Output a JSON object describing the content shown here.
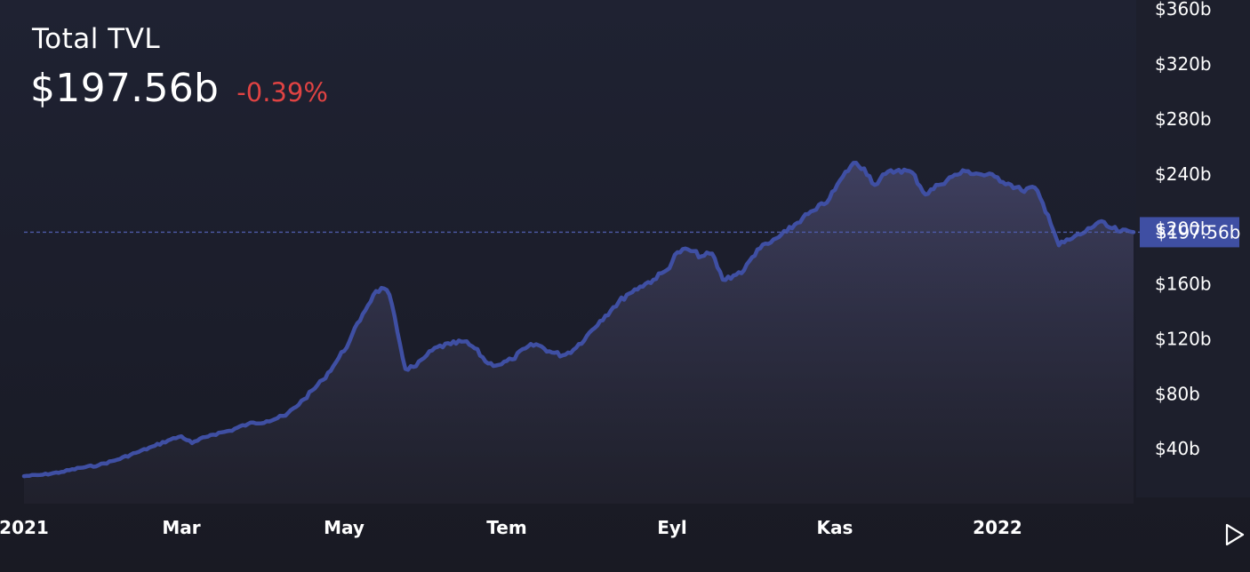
{
  "header": {
    "title": "Total TVL",
    "value": "$197.56b",
    "change": "-0.39%"
  },
  "colors": {
    "line": "#3f4fa3",
    "change_negative": "#e04343",
    "last_label_bg": "#3f4fa3"
  },
  "chart_data": {
    "type": "area",
    "title": "Total TVL",
    "x_range": [
      "2021-01-01",
      "2022-02-21"
    ],
    "ylim": [
      0,
      360
    ],
    "y_unit": "billions USD",
    "y_ticks": [
      "$40b",
      "$80b",
      "$120b",
      "$160b",
      "$200b",
      "$240b",
      "$280b",
      "$320b",
      "$360b"
    ],
    "y_tick_values": [
      40,
      80,
      120,
      160,
      200,
      240,
      280,
      320,
      360
    ],
    "x_ticks": [
      "2021",
      "Mar",
      "May",
      "Tem",
      "Eyl",
      "Kas",
      "2022"
    ],
    "x_tick_dates": [
      "2021-01-01",
      "2021-03-01",
      "2021-05-01",
      "2021-07-01",
      "2021-09-01",
      "2021-11-01",
      "2022-01-01"
    ],
    "last_value": 197.56,
    "last_value_label": "$197.56b",
    "series": [
      {
        "points": [
          [
            "2021-01-01",
            20
          ],
          [
            "2021-01-08",
            21
          ],
          [
            "2021-01-15",
            23
          ],
          [
            "2021-01-22",
            26
          ],
          [
            "2021-01-29",
            28
          ],
          [
            "2021-02-05",
            32
          ],
          [
            "2021-02-12",
            37
          ],
          [
            "2021-02-19",
            42
          ],
          [
            "2021-02-24",
            46
          ],
          [
            "2021-03-01",
            49
          ],
          [
            "2021-03-05",
            44
          ],
          [
            "2021-03-12",
            50
          ],
          [
            "2021-03-19",
            53
          ],
          [
            "2021-03-26",
            58
          ],
          [
            "2021-04-02",
            60
          ],
          [
            "2021-04-09",
            64
          ],
          [
            "2021-04-16",
            76
          ],
          [
            "2021-04-23",
            90
          ],
          [
            "2021-04-28",
            103
          ],
          [
            "2021-05-03",
            118
          ],
          [
            "2021-05-08",
            138
          ],
          [
            "2021-05-12",
            152
          ],
          [
            "2021-05-15",
            157
          ],
          [
            "2021-05-18",
            152
          ],
          [
            "2021-05-21",
            125
          ],
          [
            "2021-05-24",
            98
          ],
          [
            "2021-05-28",
            100
          ],
          [
            "2021-06-01",
            108
          ],
          [
            "2021-06-05",
            114
          ],
          [
            "2021-06-10",
            116
          ],
          [
            "2021-06-15",
            118
          ],
          [
            "2021-06-19",
            113
          ],
          [
            "2021-06-24",
            102
          ],
          [
            "2021-06-28",
            101
          ],
          [
            "2021-07-03",
            105
          ],
          [
            "2021-07-08",
            113
          ],
          [
            "2021-07-12",
            116
          ],
          [
            "2021-07-18",
            110
          ],
          [
            "2021-07-22",
            108
          ],
          [
            "2021-07-26",
            112
          ],
          [
            "2021-07-31",
            122
          ],
          [
            "2021-08-05",
            133
          ],
          [
            "2021-08-10",
            143
          ],
          [
            "2021-08-15",
            152
          ],
          [
            "2021-08-20",
            158
          ],
          [
            "2021-08-25",
            163
          ],
          [
            "2021-08-30",
            170
          ],
          [
            "2021-09-03",
            183
          ],
          [
            "2021-09-07",
            185
          ],
          [
            "2021-09-12",
            180
          ],
          [
            "2021-09-16",
            182
          ],
          [
            "2021-09-20",
            163
          ],
          [
            "2021-09-24",
            166
          ],
          [
            "2021-09-28",
            170
          ],
          [
            "2021-10-03",
            185
          ],
          [
            "2021-10-08",
            190
          ],
          [
            "2021-10-14",
            198
          ],
          [
            "2021-10-20",
            208
          ],
          [
            "2021-10-25",
            214
          ],
          [
            "2021-10-30",
            222
          ],
          [
            "2021-11-04",
            238
          ],
          [
            "2021-11-08",
            248
          ],
          [
            "2021-11-12",
            244
          ],
          [
            "2021-11-16",
            232
          ],
          [
            "2021-11-20",
            240
          ],
          [
            "2021-11-25",
            243
          ],
          [
            "2021-11-30",
            241
          ],
          [
            "2021-12-05",
            225
          ],
          [
            "2021-12-10",
            232
          ],
          [
            "2021-12-15",
            238
          ],
          [
            "2021-12-20",
            242
          ],
          [
            "2021-12-25",
            240
          ],
          [
            "2021-12-31",
            238
          ],
          [
            "2022-01-05",
            233
          ],
          [
            "2022-01-10",
            228
          ],
          [
            "2022-01-15",
            230
          ],
          [
            "2022-01-20",
            210
          ],
          [
            "2022-01-24",
            188
          ],
          [
            "2022-01-29",
            193
          ],
          [
            "2022-02-03",
            198
          ],
          [
            "2022-02-08",
            205
          ],
          [
            "2022-02-12",
            201
          ],
          [
            "2022-02-16",
            198
          ],
          [
            "2022-02-21",
            197.56
          ]
        ]
      }
    ],
    "grid": false,
    "legend": "none"
  }
}
